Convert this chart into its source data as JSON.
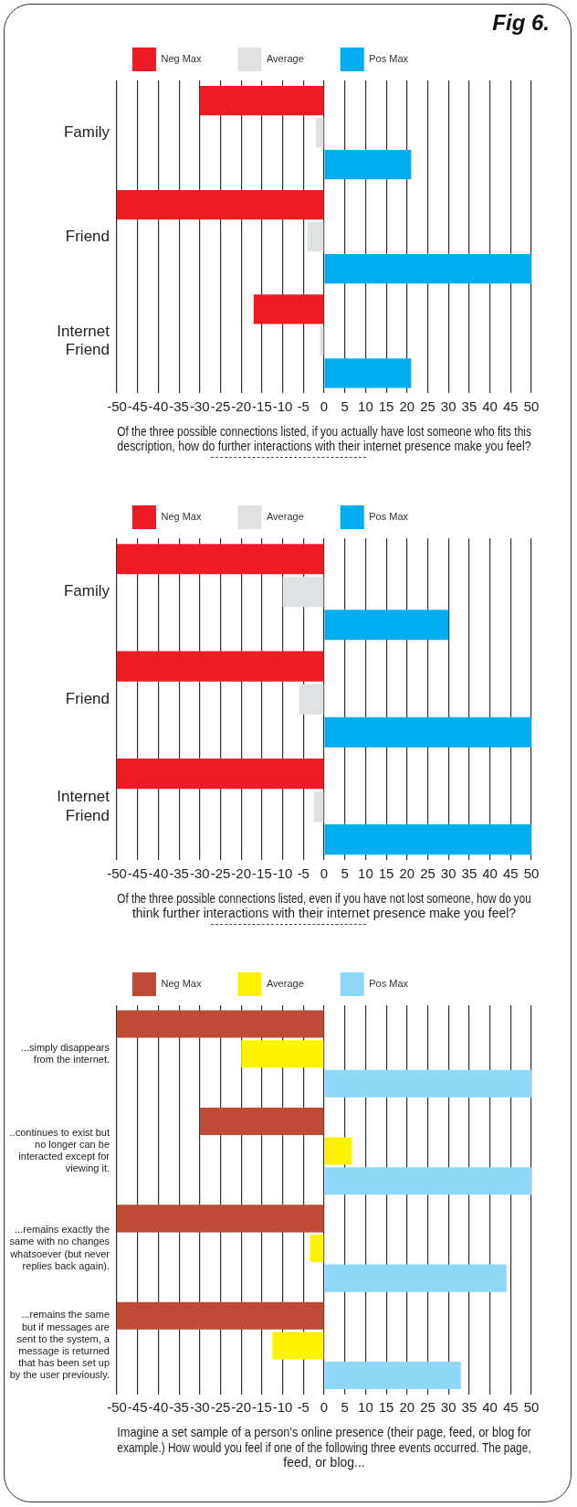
{
  "chart_data": [
    {
      "type": "bar",
      "orientation": "horizontal",
      "annotations": [
        "Fig 6."
      ],
      "xlabel": "Of the three possible connections listed, if you actually have lost someone who fits this description, how do further interactions with their internet presence make you feel?",
      "categories": [
        "Family",
        "Friend",
        "Internet Friend"
      ],
      "series": [
        {
          "name": "Neg Max",
          "color": "#ed1c24",
          "values": [
            -30,
            -50,
            -17
          ]
        },
        {
          "name": "Average",
          "color": "#e0e1e2",
          "values": [
            -2,
            -4,
            -1
          ]
        },
        {
          "name": "Pos Max",
          "color": "#00aeef",
          "values": [
            21,
            50,
            21
          ]
        }
      ],
      "xlim": [
        -50,
        50
      ],
      "xticks": [
        -50,
        -45,
        -40,
        -35,
        -30,
        -25,
        -20,
        -15,
        -10,
        -5,
        0,
        5,
        10,
        15,
        20,
        25,
        30,
        35,
        40,
        45,
        50
      ],
      "grid": "x",
      "legend": "top"
    },
    {
      "type": "bar",
      "orientation": "horizontal",
      "xlabel": "Of the three possible connections listed, even if you have not lost someone, how do you think further interactions with their internet presence make you feel?",
      "categories": [
        "Family",
        "Friend",
        "Internet Friend"
      ],
      "series": [
        {
          "name": "Neg Max",
          "color": "#ed1c24",
          "values": [
            -50,
            -50,
            -50
          ]
        },
        {
          "name": "Average",
          "color": "#e0e1e2",
          "values": [
            -10,
            -6,
            -2.5
          ]
        },
        {
          "name": "Pos Max",
          "color": "#00aeef",
          "values": [
            30,
            50,
            50
          ]
        }
      ],
      "xlim": [
        -50,
        50
      ],
      "xticks": [
        -50,
        -45,
        -40,
        -35,
        -30,
        -25,
        -20,
        -15,
        -10,
        -5,
        0,
        5,
        10,
        15,
        20,
        25,
        30,
        35,
        40,
        45,
        50
      ],
      "grid": "x",
      "legend": "top"
    },
    {
      "type": "bar",
      "orientation": "horizontal",
      "xlabel": "Imagine a set sample of a person's online presence (their page, feed, or blog for example.) How would you feel if one of the following three events occurred. The page, feed, or blog...",
      "categories": [
        "...simply disappears from the internet.",
        "..continues to exist but no longer can be interacted except for viewing it.",
        "...remains exactly the same with no changes whatsoever (but never replies back again).",
        "...remains the same but if messages are sent to the system, a message is returned that has been set up by the user previously."
      ],
      "series": [
        {
          "name": "Neg Max",
          "color": "#be4b37",
          "values": [
            -50,
            -30,
            -50,
            -50
          ]
        },
        {
          "name": "Average",
          "color": "#fff200",
          "values": [
            -20,
            6.7,
            -3.4,
            -12.5
          ]
        },
        {
          "name": "Pos Max",
          "color": "#8ed8f8",
          "values": [
            50,
            50,
            44,
            33
          ]
        }
      ],
      "xlim": [
        -50,
        50
      ],
      "xticks": [
        -50,
        -45,
        -40,
        -35,
        -30,
        -25,
        -20,
        -15,
        -10,
        -5,
        0,
        5,
        10,
        15,
        20,
        25,
        30,
        35,
        40,
        45,
        50
      ],
      "grid": "x",
      "legend": "top"
    }
  ]
}
